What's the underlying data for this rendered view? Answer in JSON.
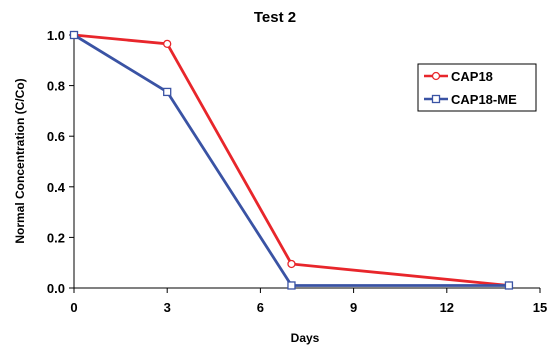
{
  "chart_data": {
    "type": "line",
    "title": "Test 2",
    "xlabel": "Days",
    "ylabel": "Normal Concentration (C/Co)",
    "xlim": [
      0,
      15
    ],
    "ylim": [
      0,
      1.0
    ],
    "xticks": [
      "0",
      "3",
      "6",
      "9",
      "12",
      "15"
    ],
    "yticks": [
      "0.0",
      "0.2",
      "0.4",
      "0.6",
      "0.8",
      "1.0"
    ],
    "grid": false,
    "legend_position": "right",
    "series": [
      {
        "name": "CAP18",
        "color": "#e8262b",
        "marker": "circle",
        "x": [
          0,
          3,
          7,
          14
        ],
        "y": [
          1.0,
          0.965,
          0.095,
          0.01
        ]
      },
      {
        "name": "CAP18-ME",
        "color": "#3a53a4",
        "marker": "square",
        "x": [
          0,
          3,
          7,
          14
        ],
        "y": [
          1.0,
          0.775,
          0.01,
          0.01
        ]
      }
    ]
  }
}
